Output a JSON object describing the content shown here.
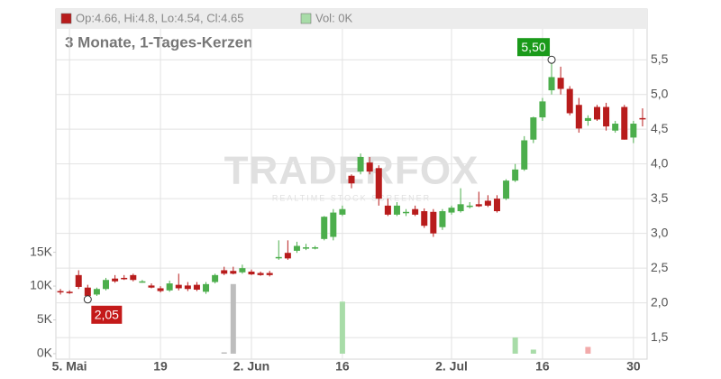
{
  "chart_data": {
    "type": "candlestick",
    "legend_text": "Op:4.66, Hi:4.8, Lo:4.54, Cl:4.65",
    "volume_legend": "Vol: 0K",
    "subtitle": "3 Monate, 1-Tages-Kerzen",
    "watermark": "TRADERFOX",
    "watermark_sub": "REALTIME STOCK SCREENER",
    "high_label": "5,50",
    "low_label": "2,05",
    "up_color": "#4cae4c",
    "down_color": "#b81c1c",
    "categories": [
      null,
      "5. Mai",
      null,
      null,
      null,
      null,
      null,
      null,
      null,
      null,
      null,
      "19",
      null,
      null,
      null,
      null,
      null,
      null,
      null,
      null,
      null,
      "2. Jun",
      null,
      null,
      null,
      null,
      null,
      null,
      null,
      null,
      null,
      "16",
      null,
      null,
      null,
      null,
      null,
      null,
      null,
      null,
      null,
      null,
      null,
      "2. Jul",
      null,
      null,
      null,
      null,
      null,
      null,
      null,
      null,
      null,
      "16",
      null,
      null,
      null,
      null,
      null,
      null,
      null,
      null,
      null,
      "30",
      null
    ],
    "open": [
      2.17,
      2.16,
      2.4,
      2.22,
      2.12,
      2.2,
      2.35,
      2.36,
      2.4,
      2.3,
      2.25,
      2.21,
      2.18,
      2.26,
      2.25,
      2.26,
      2.16,
      2.3,
      2.47,
      2.46,
      2.44,
      2.45,
      2.43,
      2.43,
      2.65,
      2.72,
      2.75,
      2.78,
      2.79,
      2.92,
      2.95,
      3.27,
      3.83,
      3.89,
      4.02,
      3.94,
      3.4,
      3.27,
      3.3,
      3.35,
      3.32,
      3.31,
      3.09,
      3.3,
      3.32,
      3.38,
      3.42,
      3.47,
      3.5,
      3.5,
      3.76,
      3.92,
      4.35,
      4.67,
      5.06,
      5.24,
      5.08,
      4.85,
      4.62,
      4.82,
      4.82,
      4.48,
      4.82,
      4.38,
      4.66
    ],
    "high": [
      2.2,
      2.18,
      2.47,
      2.26,
      2.22,
      2.36,
      2.4,
      2.4,
      2.42,
      2.33,
      2.28,
      2.24,
      2.32,
      2.42,
      2.3,
      2.3,
      2.3,
      2.42,
      2.52,
      2.52,
      2.55,
      2.48,
      2.45,
      2.46,
      2.9,
      2.9,
      2.88,
      2.85,
      2.82,
      3.25,
      3.35,
      3.4,
      3.85,
      4.15,
      4.1,
      3.98,
      3.5,
      3.45,
      3.35,
      3.4,
      3.36,
      3.35,
      3.35,
      3.4,
      3.65,
      3.45,
      3.6,
      3.55,
      3.55,
      3.78,
      4.0,
      4.4,
      4.68,
      4.95,
      5.5,
      5.4,
      5.12,
      4.95,
      4.7,
      4.85,
      4.88,
      4.62,
      4.85,
      4.62,
      4.8
    ],
    "low": [
      2.12,
      2.13,
      2.2,
      2.05,
      2.1,
      2.18,
      2.29,
      2.33,
      2.31,
      2.29,
      2.21,
      2.15,
      2.16,
      2.18,
      2.17,
      2.17,
      2.13,
      2.28,
      2.4,
      2.41,
      2.42,
      2.4,
      2.39,
      2.38,
      2.62,
      2.62,
      2.72,
      2.76,
      2.77,
      2.9,
      2.9,
      3.25,
      3.65,
      3.85,
      3.85,
      3.4,
      3.25,
      3.25,
      3.25,
      3.25,
      3.08,
      2.95,
      3.05,
      3.27,
      3.3,
      3.36,
      3.38,
      3.38,
      3.3,
      3.48,
      3.74,
      3.9,
      4.3,
      4.62,
      5.0,
      5.0,
      4.7,
      4.45,
      4.55,
      4.62,
      4.48,
      4.45,
      4.35,
      4.3,
      4.54
    ],
    "close": [
      2.16,
      2.14,
      2.23,
      2.1,
      2.2,
      2.33,
      2.31,
      2.34,
      2.33,
      2.31,
      2.22,
      2.17,
      2.28,
      2.21,
      2.2,
      2.19,
      2.27,
      2.4,
      2.42,
      2.42,
      2.5,
      2.41,
      2.4,
      2.4,
      2.66,
      2.64,
      2.82,
      2.8,
      2.8,
      3.24,
      3.3,
      3.35,
      3.72,
      4.1,
      3.89,
      3.5,
      3.27,
      3.4,
      3.31,
      3.27,
      3.11,
      3.0,
      3.32,
      3.37,
      3.42,
      3.4,
      3.39,
      3.4,
      3.32,
      3.76,
      3.92,
      4.34,
      4.67,
      4.9,
      5.25,
      5.08,
      4.73,
      4.51,
      4.66,
      4.64,
      4.54,
      4.58,
      4.35,
      4.58,
      4.65
    ],
    "volume": [
      null,
      null,
      null,
      null,
      null,
      null,
      null,
      null,
      null,
      null,
      null,
      null,
      null,
      null,
      null,
      null,
      null,
      null,
      200,
      10300,
      null,
      null,
      null,
      null,
      null,
      null,
      null,
      null,
      null,
      null,
      null,
      7700,
      null,
      null,
      null,
      null,
      null,
      null,
      null,
      null,
      null,
      null,
      null,
      null,
      null,
      null,
      null,
      null,
      null,
      null,
      2400,
      null,
      600,
      null,
      null,
      null,
      null,
      null,
      1000,
      null,
      null,
      null,
      null,
      null,
      null
    ],
    "volume_colors": [
      null,
      null,
      null,
      null,
      null,
      null,
      null,
      null,
      null,
      null,
      null,
      null,
      null,
      null,
      null,
      null,
      null,
      null,
      "#bdbdbd",
      "#bdbdbd",
      null,
      null,
      null,
      null,
      null,
      null,
      null,
      null,
      null,
      null,
      null,
      "#a8dca8",
      null,
      null,
      null,
      null,
      null,
      null,
      null,
      null,
      null,
      null,
      null,
      null,
      null,
      null,
      null,
      null,
      null,
      null,
      "#a8dca8",
      null,
      "#a8dca8",
      null,
      null,
      null,
      null,
      null,
      "#f2aaaa",
      null,
      null,
      null,
      null,
      null,
      null
    ],
    "ylim": [
      1.19,
      6.23
    ],
    "yticks": [
      {
        "value": 1.5,
        "label": "1,5"
      },
      {
        "value": 2.0,
        "label": "2,0"
      },
      {
        "value": 2.5,
        "label": "2,5"
      },
      {
        "value": 3.0,
        "label": "3,0"
      },
      {
        "value": 3.5,
        "label": "3,5"
      },
      {
        "value": 4.0,
        "label": "4,0"
      },
      {
        "value": 4.5,
        "label": "4,5"
      },
      {
        "value": 5.0,
        "label": "5,0"
      },
      {
        "value": 5.5,
        "label": "5,5"
      }
    ],
    "y2lim": [
      -810,
      51000
    ],
    "y2ticks": [
      {
        "value": 0,
        "label": "0K"
      },
      {
        "value": 5000,
        "label": "5K"
      },
      {
        "value": 10000,
        "label": "10K"
      },
      {
        "value": 15000,
        "label": "15K"
      }
    ],
    "grid": true
  }
}
